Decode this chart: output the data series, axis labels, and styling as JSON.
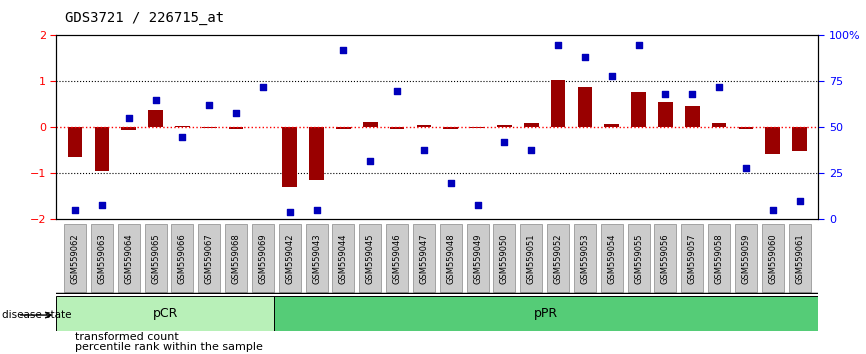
{
  "title": "GDS3721 / 226715_at",
  "samples": [
    "GSM559062",
    "GSM559063",
    "GSM559064",
    "GSM559065",
    "GSM559066",
    "GSM559067",
    "GSM559068",
    "GSM559069",
    "GSM559042",
    "GSM559043",
    "GSM559044",
    "GSM559045",
    "GSM559046",
    "GSM559047",
    "GSM559048",
    "GSM559049",
    "GSM559050",
    "GSM559051",
    "GSM559052",
    "GSM559053",
    "GSM559054",
    "GSM559055",
    "GSM559056",
    "GSM559057",
    "GSM559058",
    "GSM559059",
    "GSM559060",
    "GSM559061"
  ],
  "bar_values": [
    -0.65,
    -0.95,
    -0.05,
    0.38,
    0.04,
    -0.02,
    -0.04,
    0.02,
    -1.3,
    -1.15,
    -0.04,
    0.12,
    -0.03,
    0.05,
    -0.03,
    -0.02,
    0.06,
    0.1,
    1.02,
    0.88,
    0.07,
    0.78,
    0.55,
    0.47,
    0.1,
    -0.04,
    -0.58,
    -0.52
  ],
  "blue_pct": [
    5,
    8,
    55,
    65,
    45,
    62,
    58,
    72,
    4,
    5,
    92,
    32,
    70,
    38,
    20,
    8,
    42,
    38,
    95,
    88,
    78,
    95,
    68,
    68,
    72,
    28,
    5,
    10
  ],
  "pCR_count": 8,
  "pCR_color": "#b8f0b8",
  "pPR_color": "#55cc77",
  "bar_color": "#990000",
  "dot_color": "#0000bb",
  "ylim_left": [
    -2,
    2
  ],
  "ylim_right": [
    0,
    100
  ],
  "yticks_left": [
    -2,
    -1,
    0,
    1,
    2
  ],
  "yticks_right": [
    0,
    25,
    50,
    75,
    100
  ],
  "tick_label_bg": "#cccccc",
  "tick_label_edge": "#888888"
}
